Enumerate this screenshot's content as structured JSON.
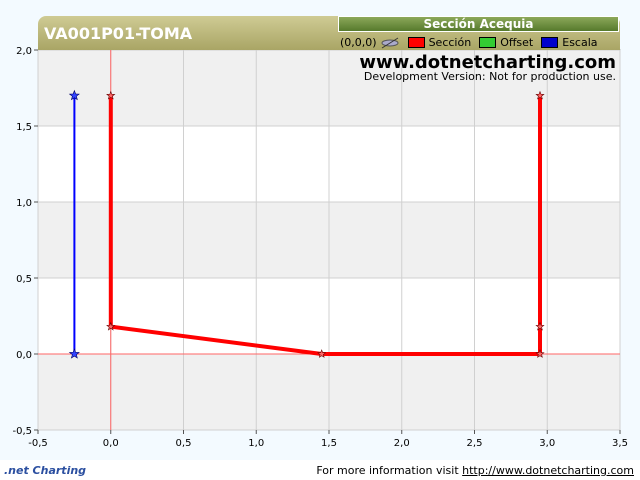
{
  "chart_data": {
    "type": "scatter",
    "title": "VA001P01-TOMA",
    "xlim": [
      -0.5,
      3.5
    ],
    "ylim": [
      -0.5,
      2.0
    ],
    "x_ticks": [
      -0.5,
      0.0,
      0.5,
      1.0,
      1.5,
      2.0,
      2.5,
      3.0,
      3.5
    ],
    "y_ticks": [
      -0.5,
      0.0,
      0.5,
      1.0,
      1.5,
      2.0
    ],
    "x_tick_labels": [
      "-0,5",
      "0,0",
      "0,5",
      "1,0",
      "1,5",
      "2,0",
      "2,5",
      "3,0",
      "3,5"
    ],
    "y_tick_labels": [
      "-0,5",
      "0,0",
      "0,5",
      "1,0",
      "1,5",
      "2,0"
    ],
    "grid": true,
    "series": [
      {
        "name": "Sección",
        "color": "#ff0000",
        "points": [
          [
            0.0,
            1.7
          ],
          [
            0.0,
            0.18
          ],
          [
            1.45,
            0.0
          ],
          [
            2.95,
            0.0
          ],
          [
            2.95,
            0.18
          ],
          [
            2.95,
            1.7
          ]
        ]
      },
      {
        "name": "Escala",
        "color": "#0000ff",
        "points": [
          [
            -0.25,
            0.0
          ],
          [
            -0.25,
            1.7
          ]
        ]
      }
    ]
  },
  "legend": {
    "header": "Sección Acequia",
    "origin_label": "(0,0,0)",
    "items": [
      {
        "label": "Sección",
        "color": "#ff0000"
      },
      {
        "label": "Offset",
        "color": "#33cc33"
      },
      {
        "label": "Escala",
        "color": "#0000cc"
      }
    ]
  },
  "watermark": {
    "site": "www.dotnetcharting.com",
    "note": "Development Version: Not for production use."
  },
  "footer": {
    "logo": ".net Charting",
    "info_text": "For more information visit",
    "link_text": "http://www.dotnetcharting.com"
  }
}
